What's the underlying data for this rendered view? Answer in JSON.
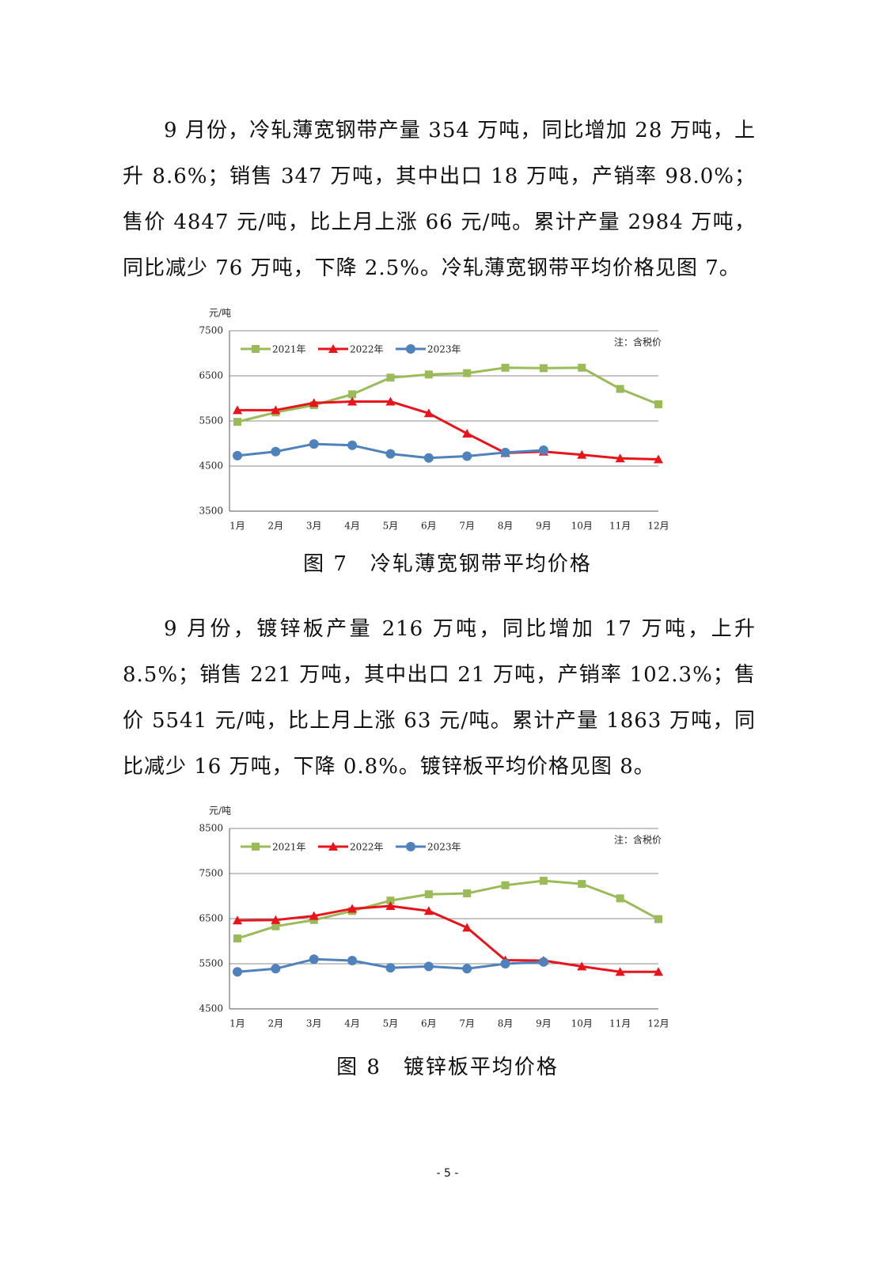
{
  "paragraphs": [
    "9 月份，冷轧薄宽钢带产量 354 万吨，同比增加 28 万吨，上升 8.6%；销售 347 万吨，其中出口 18 万吨，产销率 98.0%；售价 4847 元/吨，比上月上涨 66 元/吨。累计产量 2984 万吨，同比减少 76 万吨，下降 2.5%。冷轧薄宽钢带平均价格见图 7。",
    "9 月份，镀锌板产量 216 万吨，同比增加 17 万吨，上升 8.5%；销售 221 万吨，其中出口 21 万吨，产销率 102.3%；售价 5541 元/吨，比上月上涨 63 元/吨。累计产量 1863 万吨，同比减少 16 万吨，下降 0.8%。镀锌板平均价格见图 8。"
  ],
  "chart_data": [
    {
      "type": "line",
      "title": "图 7　冷轧薄宽钢带平均价格",
      "y_label": "元/吨",
      "annotation": "注：含税价",
      "categories": [
        "1月",
        "2月",
        "3月",
        "4月",
        "5月",
        "6月",
        "7月",
        "8月",
        "9月",
        "10月",
        "11月",
        "12月"
      ],
      "series": [
        {
          "name": "2021年",
          "color": "#9bbb59",
          "marker": "square",
          "values": [
            5480,
            5690,
            5850,
            6090,
            6460,
            6530,
            6560,
            6680,
            6670,
            6680,
            6210,
            5870
          ]
        },
        {
          "name": "2022年",
          "color": "#e8141b",
          "marker": "triangle",
          "values": [
            5740,
            5740,
            5900,
            5930,
            5930,
            5670,
            5220,
            4790,
            4820,
            4750,
            4670,
            4650
          ]
        },
        {
          "name": "2023年",
          "color": "#4f81bd",
          "marker": "circle",
          "values": [
            4730,
            4820,
            4990,
            4960,
            4770,
            4680,
            4720,
            4800,
            4850,
            null,
            null,
            null
          ]
        }
      ],
      "ylim": [
        3500,
        7500
      ],
      "yticks": [
        3500,
        4500,
        5500,
        6500,
        7500
      ],
      "grid": true
    },
    {
      "type": "line",
      "title": "图 8　镀锌板平均价格",
      "y_label": "元/吨",
      "annotation": "注：含税价",
      "categories": [
        "1月",
        "2月",
        "3月",
        "4月",
        "5月",
        "6月",
        "7月",
        "8月",
        "9月",
        "10月",
        "11月",
        "12月"
      ],
      "series": [
        {
          "name": "2021年",
          "color": "#9bbb59",
          "marker": "square",
          "values": [
            6060,
            6330,
            6470,
            6670,
            6900,
            7040,
            7060,
            7240,
            7340,
            7270,
            6950,
            6490
          ]
        },
        {
          "name": "2022年",
          "color": "#e8141b",
          "marker": "triangle",
          "values": [
            6460,
            6470,
            6560,
            6720,
            6780,
            6670,
            6300,
            5580,
            5570,
            5440,
            5320,
            5320
          ]
        },
        {
          "name": "2023年",
          "color": "#4f81bd",
          "marker": "circle",
          "values": [
            5320,
            5390,
            5600,
            5570,
            5410,
            5440,
            5390,
            5500,
            5540,
            null,
            null,
            null
          ]
        }
      ],
      "ylim": [
        4500,
        8500
      ],
      "yticks": [
        4500,
        5500,
        6500,
        7500,
        8500
      ],
      "grid": true
    }
  ],
  "page_number": "- 5 -"
}
